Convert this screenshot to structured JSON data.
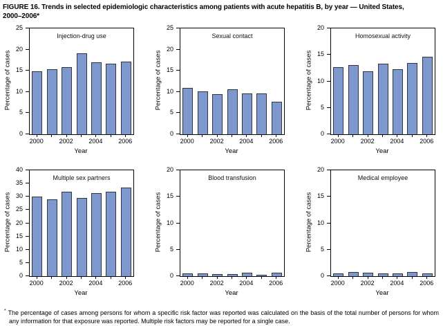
{
  "figure": {
    "title_line1": "FIGURE 16. Trends in selected epidemiologic characteristics among patients with acute hepatitis B, by year — United States,",
    "title_line2": "2000–2006*",
    "footnote_marker": "*",
    "footnote_text": "The percentage of cases among persons for whom a specific risk factor was reported was calculated on the basis of the total number of persons for whom any information for that exposure was reported. Multiple risk factors may be reported for a single case."
  },
  "colors": {
    "bar_fill": "#7d98cd",
    "bar_border": "#31363e",
    "axis": "#000000"
  },
  "chart_data": [
    {
      "type": "bar",
      "title": "Injection-drug use",
      "categories": [
        "2000",
        "2001",
        "2002",
        "2003",
        "2004",
        "2005",
        "2006"
      ],
      "values": [
        14.8,
        15.3,
        15.8,
        19.2,
        17.0,
        16.6,
        17.1
      ],
      "xlabel": "Year",
      "ylabel": "Percentage of cases",
      "ylim": [
        0,
        25
      ],
      "ytick_step": 5,
      "xtick_labels": [
        "2000",
        "",
        "2002",
        "",
        "2004",
        "",
        "2006"
      ],
      "grid": false,
      "legend": "none"
    },
    {
      "type": "bar",
      "title": "Sexual contact",
      "categories": [
        "2000",
        "2001",
        "2002",
        "2003",
        "2004",
        "2005",
        "2006"
      ],
      "values": [
        11.0,
        10.1,
        9.4,
        10.6,
        9.7,
        9.7,
        7.7
      ],
      "xlabel": "Year",
      "ylabel": "Percentage of cases",
      "ylim": [
        0,
        25
      ],
      "ytick_step": 5,
      "xtick_labels": [
        "2000",
        "",
        "2002",
        "",
        "2004",
        "",
        "2006"
      ],
      "grid": false,
      "legend": "none"
    },
    {
      "type": "bar",
      "title": "Homosexual activity",
      "categories": [
        "2000",
        "2001",
        "2002",
        "2003",
        "2004",
        "2005",
        "2006"
      ],
      "values": [
        12.7,
        13.1,
        11.9,
        13.3,
        12.3,
        13.5,
        14.7
      ],
      "xlabel": "Year",
      "ylabel": "Percentage of cases",
      "ylim": [
        0,
        20
      ],
      "ytick_step": 5,
      "xtick_labels": [
        "2000",
        "",
        "2002",
        "",
        "2004",
        "",
        "2006"
      ],
      "grid": false,
      "legend": "none"
    },
    {
      "type": "bar",
      "title": "Multiple sex partners",
      "categories": [
        "2000",
        "2001",
        "2002",
        "2003",
        "2004",
        "2005",
        "2006"
      ],
      "values": [
        30.0,
        28.9,
        31.9,
        29.6,
        31.4,
        31.8,
        33.4
      ],
      "xlabel": "Year",
      "ylabel": "Percentage of cases",
      "ylim": [
        0,
        40
      ],
      "ytick_step": 5,
      "xtick_labels": [
        "2000",
        "",
        "2002",
        "",
        "2004",
        "",
        "2006"
      ],
      "grid": false,
      "legend": "none"
    },
    {
      "type": "bar",
      "title": "Blood transfusion",
      "categories": [
        "2000",
        "2001",
        "2002",
        "2003",
        "2004",
        "2005",
        "2006"
      ],
      "values": [
        0.5,
        0.5,
        0.4,
        0.4,
        0.6,
        0.25,
        0.6
      ],
      "xlabel": "Year",
      "ylabel": "Percentage of cases",
      "ylim": [
        0,
        20
      ],
      "ytick_step": 5,
      "xtick_labels": [
        "2000",
        "",
        "2002",
        "",
        "2004",
        "",
        "2006"
      ],
      "grid": false,
      "legend": "none"
    },
    {
      "type": "bar",
      "title": "Medical employee",
      "categories": [
        "2000",
        "2001",
        "2002",
        "2003",
        "2004",
        "2005",
        "2006"
      ],
      "values": [
        0.5,
        0.8,
        0.6,
        0.5,
        0.5,
        0.8,
        0.5
      ],
      "xlabel": "Year",
      "ylabel": "Percentage of cases",
      "ylim": [
        0,
        20
      ],
      "ytick_step": 5,
      "xtick_labels": [
        "2000",
        "",
        "2002",
        "",
        "2004",
        "",
        "2006"
      ],
      "grid": false,
      "legend": "none"
    }
  ]
}
